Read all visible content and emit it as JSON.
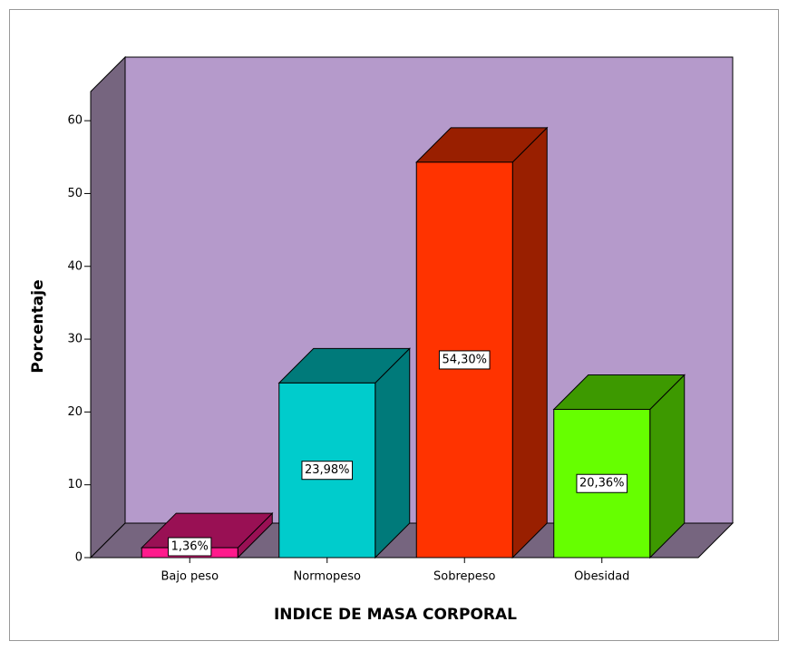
{
  "chart_data": {
    "type": "bar3d",
    "xlabel": "INDICE DE MASA CORPORAL",
    "ylabel": "Porcentaje",
    "categories": [
      "Bajo peso",
      "Normopeso",
      "Sobrepeso",
      "Obesidad"
    ],
    "values": [
      1.36,
      23.98,
      54.3,
      20.36
    ],
    "value_labels": [
      "1,36%",
      "23,98%",
      "54,30%",
      "20,36%"
    ],
    "colors": [
      "#ff1a8c",
      "#00cccc",
      "#ff3300",
      "#66ff00"
    ],
    "ylim": [
      0,
      64
    ],
    "yticks": [
      0,
      10,
      20,
      30,
      40,
      50,
      60
    ]
  }
}
